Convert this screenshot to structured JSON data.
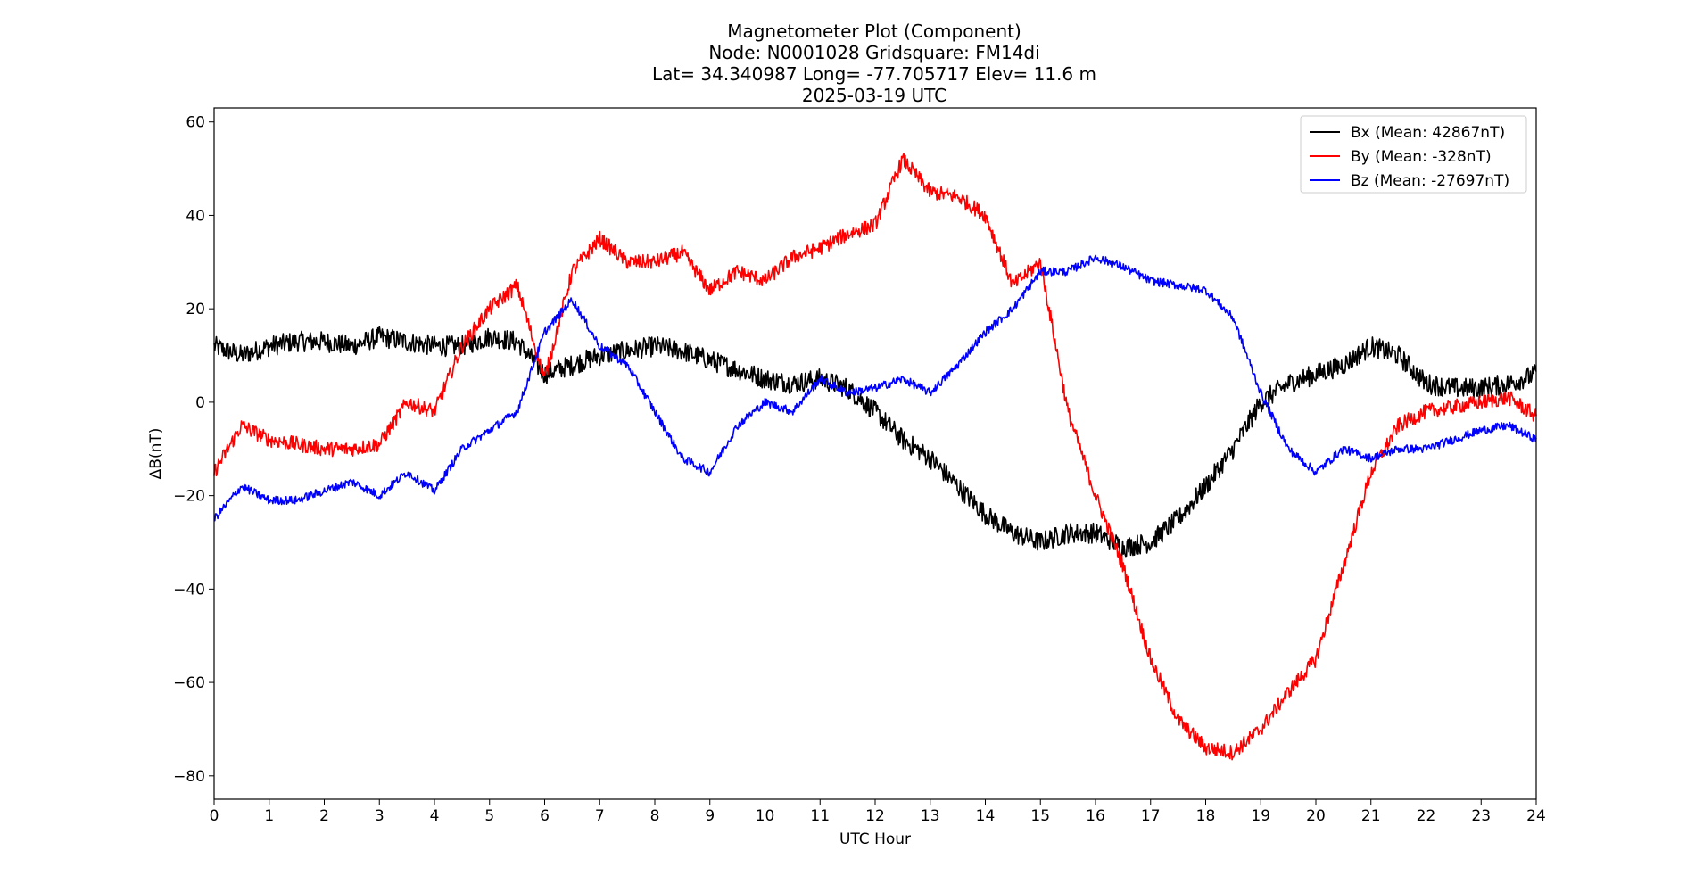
{
  "chart_data": {
    "type": "line",
    "title_lines": [
      "Magnetometer Plot (Component)",
      "Node:  N0001028     Gridsquare:  FM14di",
      "Lat= 34.340987    Long= -77.705717    Elev= 11.6 m",
      "2025-03-19  UTC"
    ],
    "xlabel": "UTC Hour",
    "ylabel": "ΔB(nT)",
    "xlim": [
      0,
      24
    ],
    "ylim": [
      -85,
      63
    ],
    "xticks": [
      0,
      1,
      2,
      3,
      4,
      5,
      6,
      7,
      8,
      9,
      10,
      11,
      12,
      13,
      14,
      15,
      16,
      17,
      18,
      19,
      20,
      21,
      22,
      23,
      24
    ],
    "yticks": [
      -80,
      -60,
      -40,
      -20,
      0,
      20,
      40,
      60
    ],
    "grid": false,
    "legend_position": "top-right",
    "series": [
      {
        "name": "Bx (Mean: 42867nT)",
        "color": "#000000",
        "x": [
          0,
          0.5,
          1,
          1.5,
          2,
          2.5,
          3,
          3.5,
          4,
          4.5,
          5,
          5.5,
          6,
          6.5,
          7,
          7.5,
          8,
          8.5,
          9,
          9.5,
          10,
          10.5,
          11,
          11.5,
          12,
          12.5,
          13,
          13.5,
          14,
          14.5,
          15,
          15.5,
          16,
          16.5,
          17,
          17.5,
          18,
          18.5,
          19,
          19.5,
          20,
          20.5,
          21,
          21.5,
          22,
          22.5,
          23,
          23.5,
          24
        ],
        "values": [
          12,
          10,
          12,
          13,
          13,
          12,
          14,
          13,
          12,
          12,
          14,
          13,
          6,
          8,
          10,
          11,
          12,
          11,
          9,
          7,
          5,
          4,
          5,
          3,
          -2,
          -8,
          -12,
          -18,
          -24,
          -28,
          -30,
          -28,
          -28,
          -31,
          -30,
          -25,
          -18,
          -10,
          0,
          4,
          6,
          8,
          12,
          10,
          4,
          3,
          3,
          4,
          6
        ]
      },
      {
        "name": "By (Mean: -328nT)",
        "color": "#ff0000",
        "x": [
          0,
          0.5,
          1,
          1.5,
          2,
          2.5,
          3,
          3.5,
          4,
          4.5,
          5,
          5.5,
          6,
          6.5,
          7,
          7.5,
          8,
          8.5,
          9,
          9.5,
          10,
          10.5,
          11,
          11.5,
          12,
          12.5,
          13,
          13.5,
          14,
          14.5,
          15,
          15.5,
          16,
          16.5,
          17,
          17.5,
          18,
          18.5,
          19,
          19.5,
          20,
          20.5,
          21,
          21.5,
          22,
          22.5,
          23,
          23.5,
          24
        ],
        "values": [
          -15,
          -5,
          -8,
          -9,
          -10,
          -10,
          -9,
          0,
          -2,
          12,
          20,
          25,
          5,
          28,
          35,
          30,
          30,
          32,
          24,
          28,
          26,
          31,
          33,
          36,
          38,
          52,
          45,
          44,
          40,
          25,
          30,
          -2,
          -20,
          -35,
          -55,
          -68,
          -74,
          -75,
          -70,
          -62,
          -55,
          -35,
          -15,
          -5,
          -2,
          -1,
          0,
          1,
          -3
        ],
        "annotations_peak": "By max ≈ 56 at 12.5h, min ≈ -78 at 18.5h"
      },
      {
        "name": "Bz (Mean: -27697nT)",
        "color": "#0000ff",
        "x": [
          0,
          0.5,
          1,
          1.5,
          2,
          2.5,
          3,
          3.5,
          4,
          4.5,
          5,
          5.5,
          6,
          6.5,
          7,
          7.5,
          8,
          8.5,
          9,
          9.5,
          10,
          10.5,
          11,
          11.5,
          12,
          12.5,
          13,
          13.5,
          14,
          14.5,
          15,
          15.5,
          16,
          16.5,
          17,
          17.5,
          18,
          18.5,
          19,
          19.5,
          20,
          20.5,
          21,
          21.5,
          22,
          22.5,
          23,
          23.5,
          24
        ],
        "values": [
          -25,
          -18,
          -21,
          -21,
          -19,
          -17,
          -20,
          -15,
          -19,
          -10,
          -6,
          -2,
          15,
          22,
          12,
          8,
          -2,
          -12,
          -15,
          -5,
          0,
          -2,
          5,
          2,
          3,
          5,
          2,
          8,
          15,
          20,
          28,
          28,
          31,
          29,
          26,
          25,
          24,
          18,
          2,
          -10,
          -15,
          -10,
          -12,
          -10,
          -10,
          -8,
          -6,
          -5,
          -8
        ]
      }
    ]
  },
  "legend": {
    "entries": [
      "Bx (Mean: 42867nT)",
      "By (Mean: -328nT)",
      "Bz (Mean: -27697nT)"
    ]
  }
}
